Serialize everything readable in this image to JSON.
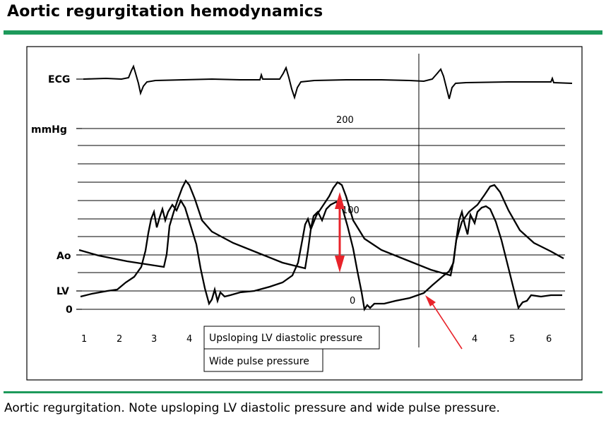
{
  "title": "Aortic regurgitation hemodynamics",
  "caption": "Aortic regurgitation. Note upsloping LV diastolic pressure and wide pulse pressure.",
  "labels": {
    "ecg": "ECG",
    "mmhg": "mmHg",
    "ao": "Ao",
    "lv": "LV",
    "zero_axis": "0",
    "scale_200": "200",
    "scale_100": "100",
    "scale_0": "0"
  },
  "phases_left": [
    "1",
    "2",
    "3",
    "4"
  ],
  "phases_right": [
    "4",
    "5",
    "6"
  ],
  "annotations": {
    "upsloping": "Upsloping LV diastolic pressure",
    "wide_pulse": "Wide pulse pressure"
  },
  "colors": {
    "rule": "#1d9a5b",
    "arrow": "#e8232a",
    "trace": "#000000"
  }
}
